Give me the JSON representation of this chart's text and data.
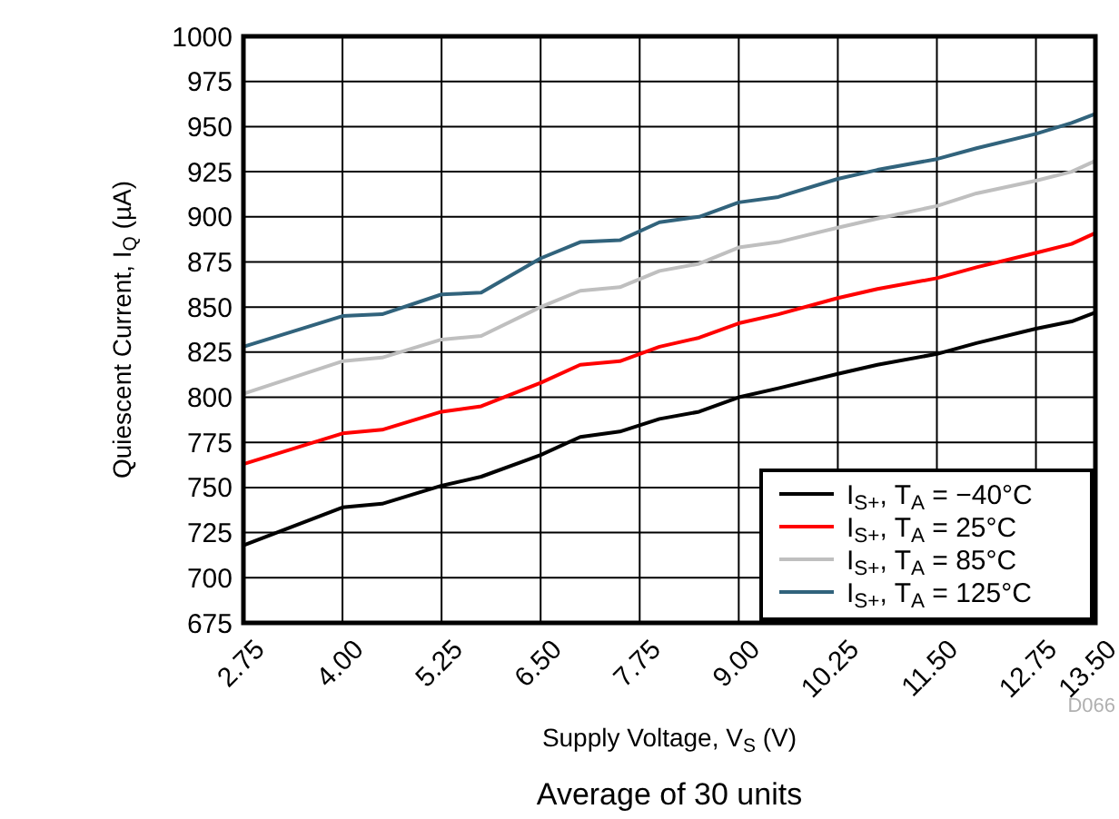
{
  "chart_data": {
    "type": "line",
    "xlabel": "Supply Voltage, V$_{S}$ (V)",
    "ylabel": "Quiescent Current, I$_{Q}$ (µA)",
    "annotations": [
      "Average of 30 units",
      "D066"
    ],
    "x": [
      2.75,
      4.0,
      4.5,
      5.25,
      5.75,
      6.5,
      7.0,
      7.5,
      8.0,
      8.5,
      9.0,
      9.5,
      10.25,
      10.75,
      11.5,
      12.0,
      12.75,
      13.2,
      13.5
    ],
    "series": [
      {
        "name": "I$_{S+}$, T$_{A}$ = −40°C",
        "color": "#000000",
        "values": [
          718,
          739,
          741,
          751,
          756,
          768,
          778,
          781,
          788,
          792,
          800,
          805,
          813,
          818,
          824,
          830,
          838,
          842,
          847
        ]
      },
      {
        "name": "I$_{S+}$, T$_{A}$ = 25°C",
        "color": "#ff0000",
        "values": [
          763,
          780,
          782,
          792,
          795,
          808,
          818,
          820,
          828,
          833,
          841,
          846,
          855,
          860,
          866,
          872,
          880,
          885,
          891
        ]
      },
      {
        "name": "I$_{S+}$, T$_{A}$ = 85°C",
        "color": "#bfbfbf",
        "values": [
          802,
          820,
          822,
          832,
          834,
          850,
          859,
          861,
          870,
          874,
          883,
          886,
          894,
          899,
          906,
          913,
          920,
          925,
          931
        ]
      },
      {
        "name": "I$_{S+}$, T$_{A}$ = 125°C",
        "color": "#31637c",
        "values": [
          828,
          845,
          846,
          857,
          858,
          877,
          886,
          887,
          897,
          900,
          908,
          911,
          921,
          926,
          932,
          938,
          946,
          952,
          957
        ]
      }
    ],
    "xlim": [
      2.75,
      13.5
    ],
    "xticks": [
      {
        "value": 2.75,
        "label": "2.75"
      },
      {
        "value": 4,
        "label": "4.00"
      },
      {
        "value": 5.25,
        "label": "5.25"
      },
      {
        "value": 6.5,
        "label": "6.50"
      },
      {
        "value": 7.75,
        "label": "7.75"
      },
      {
        "value": 9,
        "label": "9.00"
      },
      {
        "value": 10.25,
        "label": "10.25"
      },
      {
        "value": 11.5,
        "label": "11.50"
      },
      {
        "value": 12.75,
        "label": "12.75"
      },
      {
        "value": 13.5,
        "label": "13.50"
      }
    ],
    "ylim": [
      675,
      1000
    ],
    "yticks": [
      675,
      700,
      725,
      750,
      775,
      800,
      825,
      850,
      875,
      900,
      925,
      950,
      975,
      1000
    ],
    "grid": true,
    "legend": "bottom right",
    "marker": "none",
    "line_style": "solid"
  }
}
